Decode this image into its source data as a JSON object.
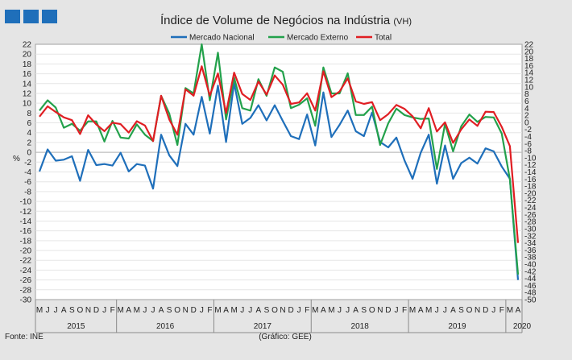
{
  "chart_data": {
    "type": "line",
    "title": "Índice de Volume de Negócios na Indústria",
    "title_suffix": "(VH)",
    "ylabel": "%",
    "left_ylim": [
      -30,
      22
    ],
    "left_tick_step": 2,
    "right_ylim": [
      -50,
      22
    ],
    "right_tick_step": 2,
    "legend_position": "top",
    "months": [
      "M",
      "J",
      "J",
      "A",
      "S",
      "O",
      "N",
      "D",
      "J",
      "F",
      "M",
      "A",
      "M",
      "J",
      "J",
      "A",
      "S",
      "O",
      "N",
      "D",
      "J",
      "F",
      "M",
      "A",
      "M",
      "J",
      "J",
      "A",
      "S",
      "O",
      "N",
      "D",
      "J",
      "F",
      "M",
      "A",
      "M",
      "J",
      "J",
      "A",
      "S",
      "O",
      "N",
      "D",
      "J",
      "F",
      "M",
      "A",
      "M",
      "J",
      "J",
      "A",
      "S",
      "O",
      "N",
      "D",
      "J",
      "F",
      "M",
      "A"
    ],
    "years": [
      {
        "label": "2015",
        "start": 0,
        "count": 10
      },
      {
        "label": "2016",
        "start": 10,
        "count": 12
      },
      {
        "label": "2017",
        "start": 22,
        "count": 12
      },
      {
        "label": "2018",
        "start": 34,
        "count": 12
      },
      {
        "label": "2019",
        "start": 46,
        "count": 12
      },
      {
        "label": "2020",
        "start": 58,
        "count": 4
      }
    ],
    "series": [
      {
        "name": "Mercado Nacional",
        "color": "#1f6fba",
        "axis": "left",
        "values": [
          -3.9,
          0.6,
          -1.7,
          -1.5,
          -0.8,
          -5.8,
          0.5,
          -2.6,
          -2.4,
          -2.7,
          -0.1,
          -3.9,
          -2.4,
          -2.7,
          -7.4,
          3.6,
          -0.6,
          -2.8,
          5.8,
          3.6,
          11.3,
          3.8,
          13.6,
          2.1,
          14.1,
          5.8,
          7.0,
          9.6,
          6.5,
          9.6,
          6.4,
          3.3,
          2.7,
          7.7,
          1.4,
          12.2,
          3.1,
          5.6,
          8.5,
          4.3,
          3.3,
          8.1,
          2.1,
          1.0,
          3.0,
          -1.6,
          -5.4,
          -0.1,
          3.6,
          -6.4,
          1.4,
          -5.4,
          -2.2,
          -1.1,
          -2.3,
          0.8,
          0.2,
          -2.9,
          -5.4,
          -26.0
        ]
      },
      {
        "name": "Mercado Externo",
        "color": "#23a14b",
        "axis": "left",
        "values": [
          8.5,
          10.6,
          9.1,
          5.0,
          5.8,
          4.4,
          6.3,
          6.3,
          2.2,
          6.4,
          3.0,
          2.8,
          5.7,
          3.6,
          2.3,
          11.5,
          7.9,
          1.5,
          13.1,
          12.0,
          22.0,
          10.6,
          20.3,
          6.7,
          15.2,
          9.0,
          8.5,
          14.9,
          11.5,
          17.3,
          16.4,
          9.0,
          9.7,
          11.0,
          5.4,
          17.3,
          12.0,
          12.0,
          16.1,
          7.6,
          7.6,
          9.3,
          1.5,
          5.9,
          8.9,
          7.6,
          7.1,
          6.8,
          6.9,
          -3.4,
          5.8,
          0.2,
          5.3,
          7.7,
          6.2,
          7.2,
          7.1,
          3.8,
          -5.5,
          -24.9
        ]
      },
      {
        "name": "Total",
        "color": "#e01e23",
        "axis": "right",
        "values": [
          1.6,
          4.5,
          2.9,
          1.4,
          0.6,
          -3.3,
          2.0,
          -0.6,
          -2.5,
          -0.1,
          -0.5,
          -2.9,
          0.3,
          -0.9,
          -5.3,
          7.5,
          0.8,
          -3.5,
          9.3,
          7.5,
          15.8,
          7.5,
          13.8,
          2.6,
          14.0,
          8.0,
          6.3,
          11.5,
          7.8,
          13.2,
          10.6,
          5.2,
          5.6,
          8.2,
          3.3,
          14.4,
          7.1,
          8.7,
          12.4,
          5.9,
          5.2,
          5.7,
          0.6,
          2.3,
          4.9,
          3.8,
          1.7,
          -1.7,
          4.0,
          -2.6,
          0.0,
          -5.8,
          -2.0,
          0.8,
          -1.0,
          3.0,
          2.9,
          -1.3,
          -6.7,
          -34.0
        ]
      }
    ]
  },
  "footer": {
    "source": "Fonte: INE",
    "credit": "(Gráfico: GEE)"
  },
  "logo": {
    "color": "#1f6fba"
  }
}
